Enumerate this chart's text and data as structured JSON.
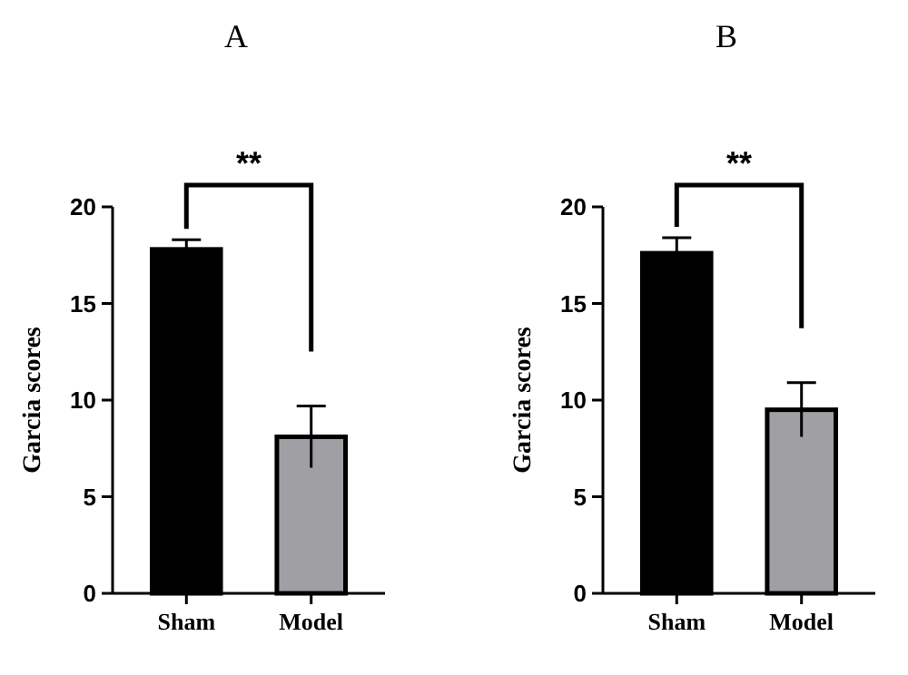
{
  "chart_data": [
    {
      "type": "bar",
      "title": "A",
      "ylabel": "Garcia scores",
      "categories": [
        "Sham",
        "Model"
      ],
      "values": [
        17.8,
        8.1
      ],
      "errors": [
        0.5,
        1.6
      ],
      "colors": [
        "#000000",
        "#a0a0a4"
      ],
      "ylim": [
        0,
        20
      ],
      "yticks": [
        0,
        5,
        10,
        15,
        20
      ],
      "grid": false,
      "annotations": [
        "**"
      ]
    },
    {
      "type": "bar",
      "title": "B",
      "ylabel": "Garcia scores",
      "categories": [
        "Sham",
        "Model"
      ],
      "values": [
        17.6,
        9.5
      ],
      "errors": [
        0.8,
        1.4
      ],
      "colors": [
        "#000000",
        "#a0a0a4"
      ],
      "ylim": [
        0,
        20
      ],
      "yticks": [
        0,
        5,
        10,
        15,
        20
      ],
      "grid": false,
      "annotations": [
        "**"
      ]
    }
  ]
}
